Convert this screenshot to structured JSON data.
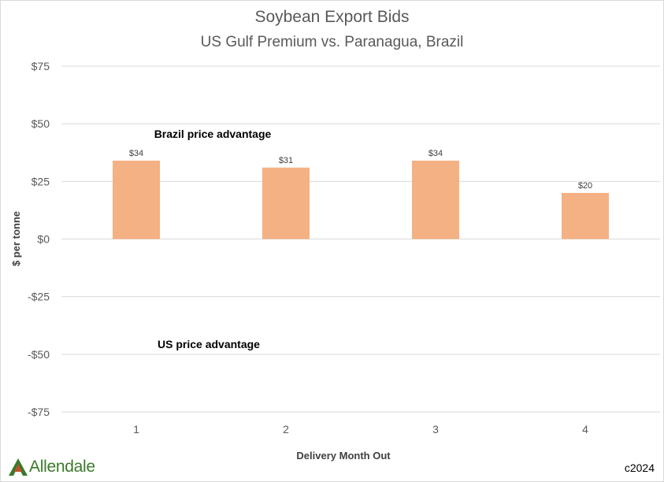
{
  "chart_data": {
    "type": "bar",
    "title": "Soybean Export Bids",
    "subtitle": "US Gulf Premium vs. Paranagua, Brazil",
    "xlabel": "Delivery Month Out",
    "ylabel": "$ per tonne",
    "categories": [
      "1",
      "2",
      "3",
      "4"
    ],
    "values": [
      34,
      31,
      34,
      20
    ],
    "data_labels": [
      "$34",
      "$31",
      "$34",
      "$20"
    ],
    "ylim": [
      -75,
      75
    ],
    "yticks": [
      75,
      50,
      25,
      0,
      -25,
      -50,
      -75
    ],
    "ytick_labels": [
      "$75",
      "$50",
      "$25",
      "$0",
      "-$25",
      "-$50",
      "-$75"
    ],
    "grid": true,
    "annotations": {
      "upper": "Brazil price advantage",
      "lower": "US price advantage"
    },
    "bar_color": "#f4b183"
  },
  "footer": {
    "logo_text": "Allendale",
    "copyright": "c2024"
  }
}
